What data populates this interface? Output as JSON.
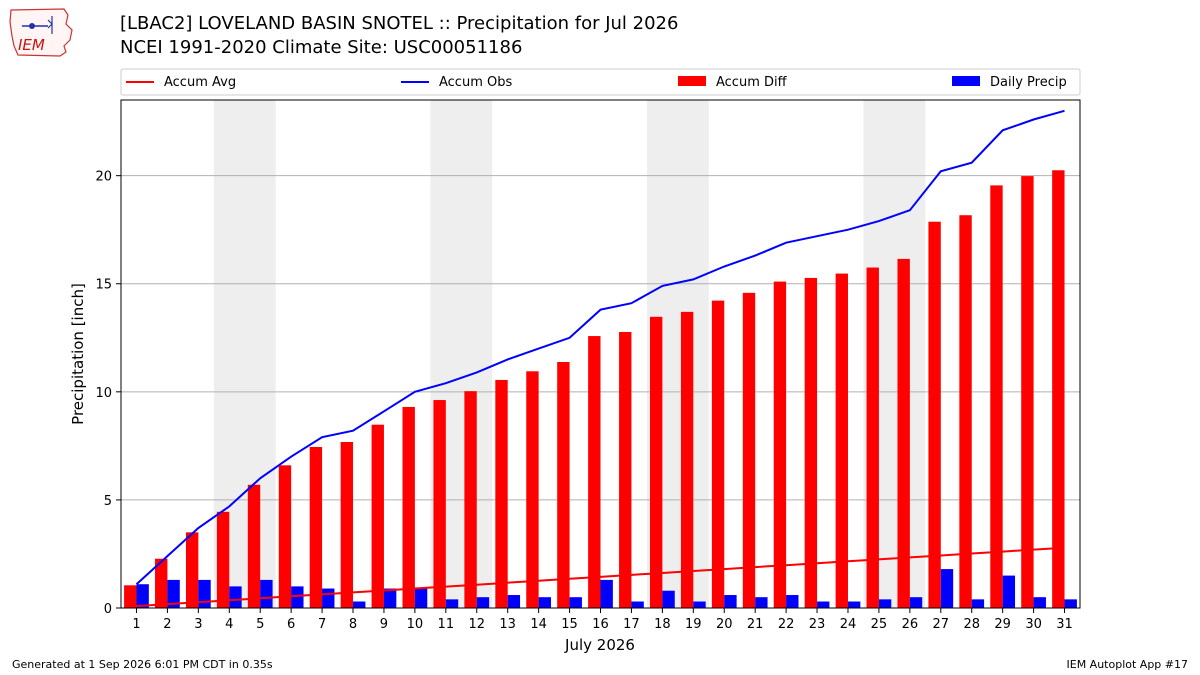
{
  "header": {
    "title_line1": "[LBAC2] LOVELAND BASIN SNOTEL :: Precipitation for Jul 2026",
    "title_line2": "NCEI 1991-2020 Climate Site: USC00051186"
  },
  "logo": {
    "text": "IEM",
    "icon": "iem-iowa-logo-icon"
  },
  "footer": {
    "left": "Generated at 1 Sep 2026 6:01 PM CDT in 0.35s",
    "right": "IEM Autoplot App #17"
  },
  "colors": {
    "accum_avg": "#ff0000",
    "accum_obs": "#0000ff",
    "accum_diff": "#ff0000",
    "daily_precip": "#0000ff",
    "weekend_shade": "#eeeeee",
    "grid": "#b0b0b0"
  },
  "chart_data": {
    "type": "bar",
    "title": "[LBAC2] LOVELAND BASIN SNOTEL :: Precipitation for Jul 2026",
    "subtitle": "NCEI 1991-2020 Climate Site: USC00051186",
    "xlabel": "July 2026",
    "ylabel": "Precipitation [inch]",
    "ylim": [
      0,
      23.5
    ],
    "yticks": [
      0,
      5,
      10,
      15,
      20
    ],
    "grid": true,
    "legend_position": "top",
    "x": [
      1,
      2,
      3,
      4,
      5,
      6,
      7,
      8,
      9,
      10,
      11,
      12,
      13,
      14,
      15,
      16,
      17,
      18,
      19,
      20,
      21,
      22,
      23,
      24,
      25,
      26,
      27,
      28,
      29,
      30,
      31
    ],
    "shaded_periods": [
      [
        4,
        5
      ],
      [
        11,
        12
      ],
      [
        18,
        19
      ],
      [
        25,
        26
      ]
    ],
    "series": [
      {
        "name": "Accum Avg",
        "kind": "line",
        "color": "#ff0000",
        "values": [
          0.09,
          0.18,
          0.27,
          0.36,
          0.45,
          0.54,
          0.63,
          0.72,
          0.81,
          0.9,
          0.99,
          1.08,
          1.17,
          1.26,
          1.35,
          1.44,
          1.53,
          1.62,
          1.71,
          1.8,
          1.89,
          1.98,
          2.07,
          2.16,
          2.25,
          2.34,
          2.43,
          2.52,
          2.61,
          2.7,
          2.79
        ]
      },
      {
        "name": "Accum Obs",
        "kind": "line",
        "color": "#0000ff",
        "values": [
          1.1,
          2.4,
          3.7,
          4.7,
          6.0,
          7.0,
          7.9,
          8.2,
          9.1,
          10.0,
          10.4,
          10.9,
          11.5,
          12.0,
          12.5,
          13.8,
          14.1,
          14.9,
          15.2,
          15.8,
          16.3,
          16.9,
          17.2,
          17.5,
          17.9,
          18.4,
          20.2,
          20.6,
          22.1,
          22.6,
          23.0
        ]
      },
      {
        "name": "Accum Diff",
        "kind": "bar",
        "color": "#ff0000",
        "values": [
          1.05,
          2.28,
          3.5,
          4.45,
          5.7,
          6.6,
          7.45,
          7.68,
          8.48,
          9.3,
          9.62,
          10.03,
          10.55,
          10.95,
          11.38,
          12.58,
          12.77,
          13.47,
          13.7,
          14.22,
          14.58,
          15.1,
          15.27,
          15.47,
          15.75,
          16.15,
          17.87,
          18.17,
          19.55,
          19.98,
          20.25
        ]
      },
      {
        "name": "Daily Precip",
        "kind": "bar",
        "color": "#0000ff",
        "values": [
          1.1,
          1.3,
          1.3,
          1.0,
          1.3,
          1.0,
          0.9,
          0.3,
          0.9,
          0.9,
          0.4,
          0.5,
          0.6,
          0.5,
          0.5,
          1.3,
          0.3,
          0.8,
          0.3,
          0.6,
          0.5,
          0.6,
          0.3,
          0.3,
          0.4,
          0.5,
          1.8,
          0.4,
          1.5,
          0.5,
          0.4
        ]
      }
    ]
  }
}
